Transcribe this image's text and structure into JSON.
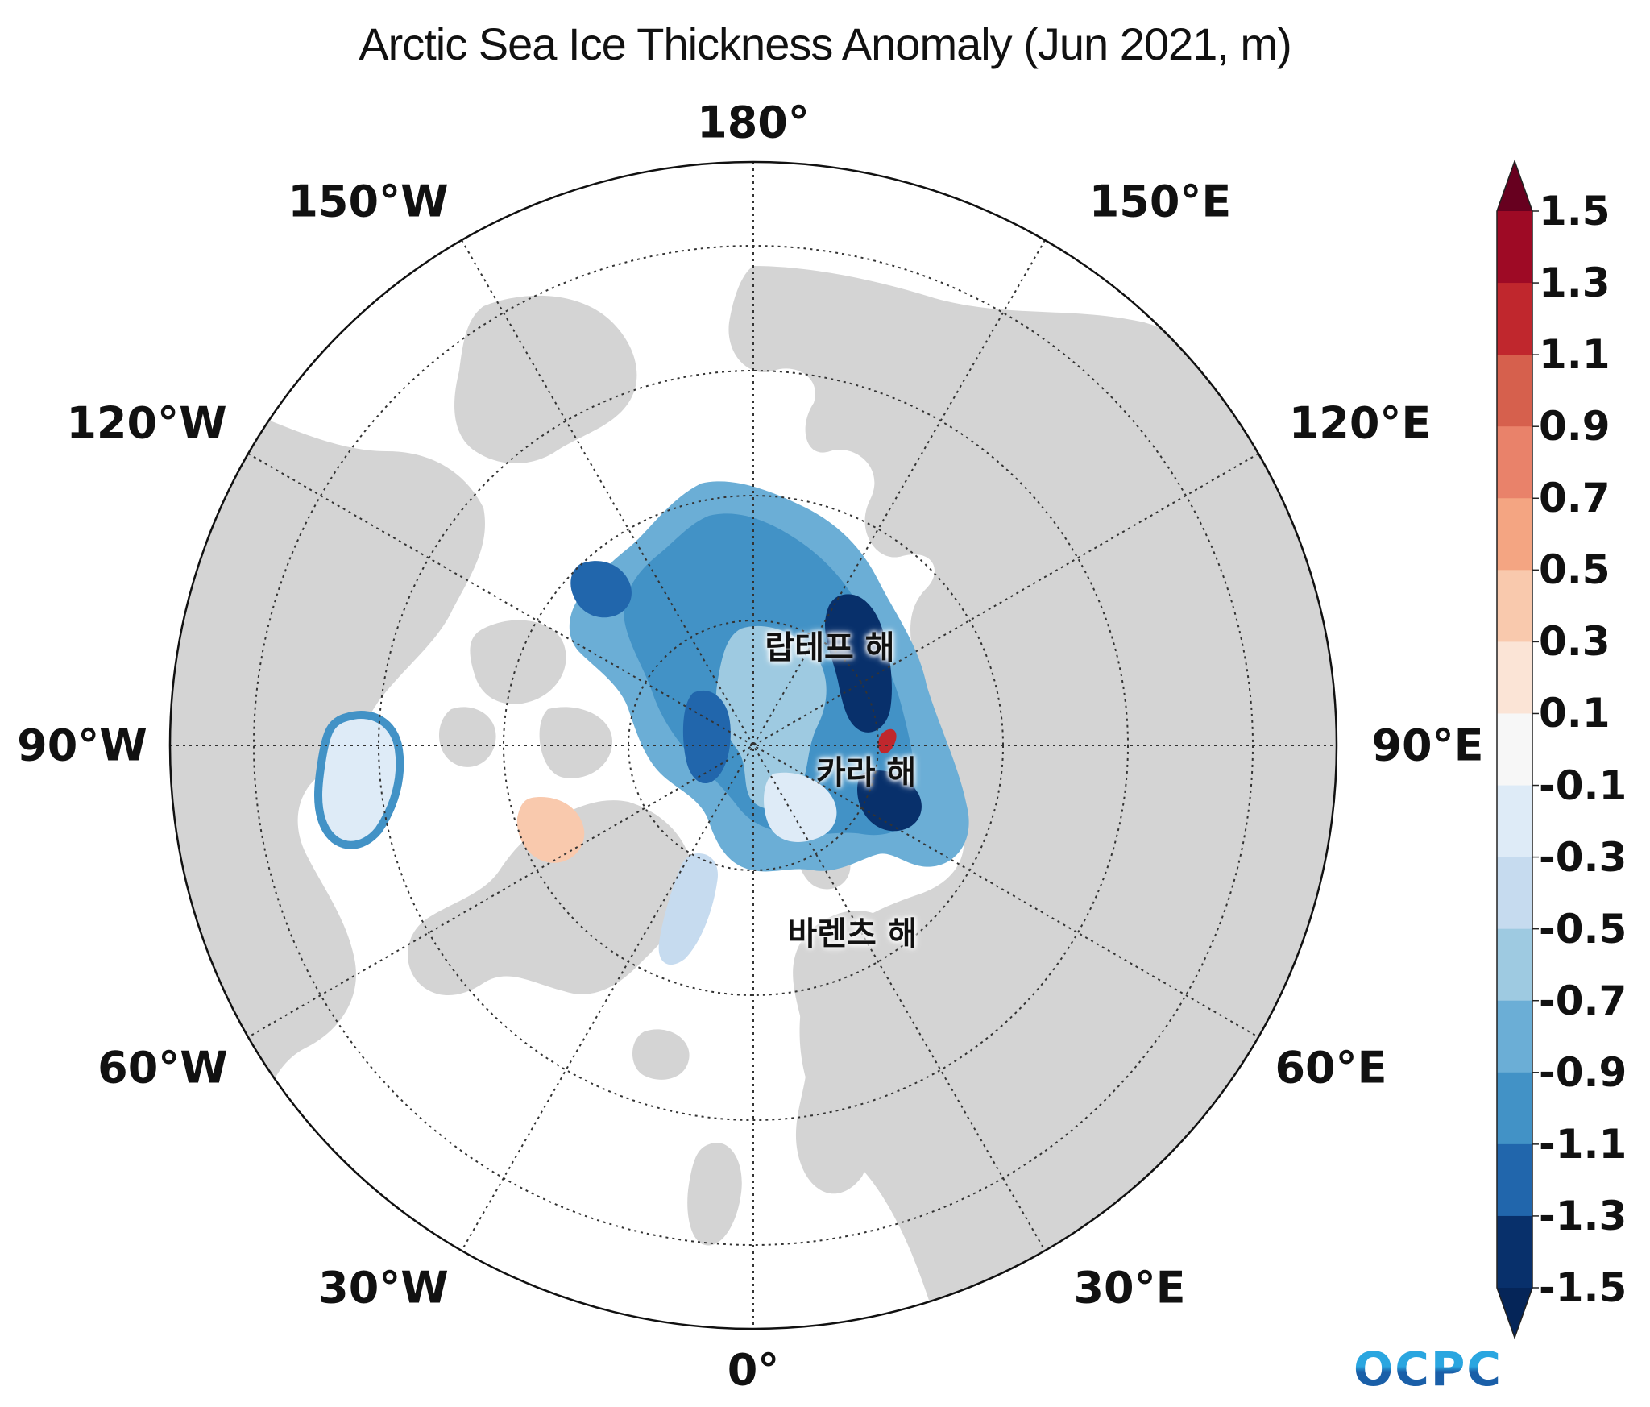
{
  "title": "Arctic Sea Ice Thickness Anomaly (Jun 2021, m)",
  "longitude_labels": {
    "lon_180": "180°",
    "lon_150E": "150°E",
    "lon_120E": "120°E",
    "lon_90E": "90°E",
    "lon_60E": "60°E",
    "lon_30E": "30°E",
    "lon_0": "0°",
    "lon_30W": "30°W",
    "lon_60W": "60°W",
    "lon_90W": "90°W",
    "lon_120W": "120°W",
    "lon_150W": "150°W"
  },
  "sea_labels": {
    "laptev": "랍테프 해",
    "kara": "카라 해",
    "barents": "바렌츠 해"
  },
  "colorbar": {
    "ticks": [
      "1.5",
      "1.3",
      "1.1",
      "0.9",
      "0.7",
      "0.5",
      "0.3",
      "0.1",
      "-0.1",
      "-0.3",
      "-0.5",
      "-0.7",
      "-0.9",
      "-1.1",
      "-1.3",
      "-1.5"
    ],
    "colors": [
      "#67001f",
      "#9e0a25",
      "#c0272d",
      "#d6604d",
      "#e9826a",
      "#f4a582",
      "#f9c9ad",
      "#fbe4d6",
      "#f7f7f7",
      "#deebf7",
      "#c6dbef",
      "#9ecae1",
      "#6baed6",
      "#4292c6",
      "#2166ac",
      "#08306b",
      "#052558"
    ],
    "extend": "both"
  },
  "colors": {
    "land": "#d4d4d4",
    "ocean": "#ffffff",
    "grid": "#333333"
  },
  "logo": "OCPC"
}
